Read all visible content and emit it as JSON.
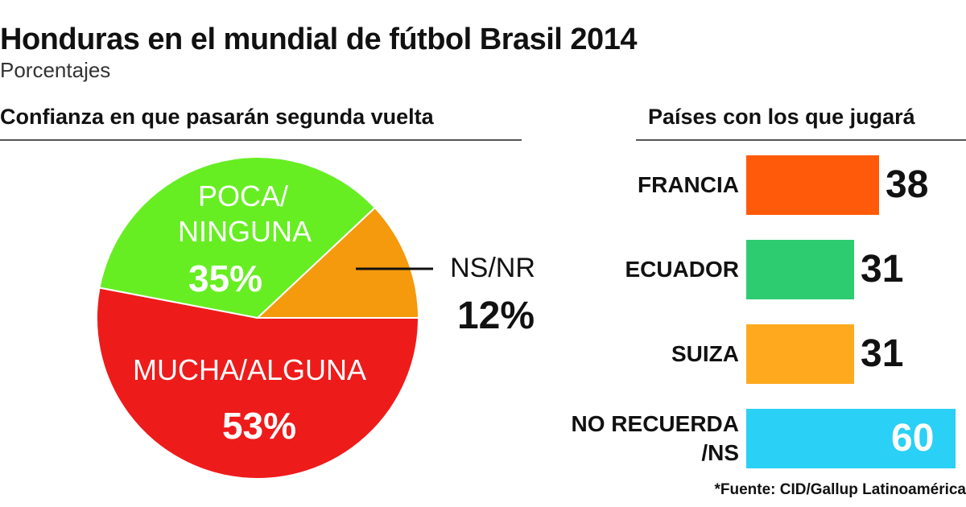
{
  "title": "Honduras en el mundial de fútbol Brasil 2014",
  "subtitle": "Porcentajes",
  "source": "*Fuente: CID/Gallup Latinoamérica",
  "chart_data": [
    {
      "type": "pie",
      "title": "Confianza en que pasarán segunda vuelta",
      "slices": [
        {
          "label": "MUCHA/ALGUNA",
          "value": 53,
          "display": "53%",
          "color": "#ee1b1b"
        },
        {
          "label": "POCA/ NINGUNA",
          "value": 35,
          "display": "35%",
          "color": "#66ee22"
        },
        {
          "label": "NS/NR",
          "value": 12,
          "display": "12%",
          "color": "#f59a0c"
        }
      ]
    },
    {
      "type": "bar",
      "orientation": "horizontal",
      "title": "Países con los que jugará",
      "categories": [
        "FRANCIA",
        "ECUADOR",
        "SUIZA",
        "NO RECUERDA /NS"
      ],
      "values": [
        38,
        31,
        31,
        60
      ],
      "colors": [
        "#ff5a0a",
        "#2ecc71",
        "#ffaa1e",
        "#2ad0f5"
      ],
      "xlim": [
        0,
        60
      ]
    }
  ]
}
